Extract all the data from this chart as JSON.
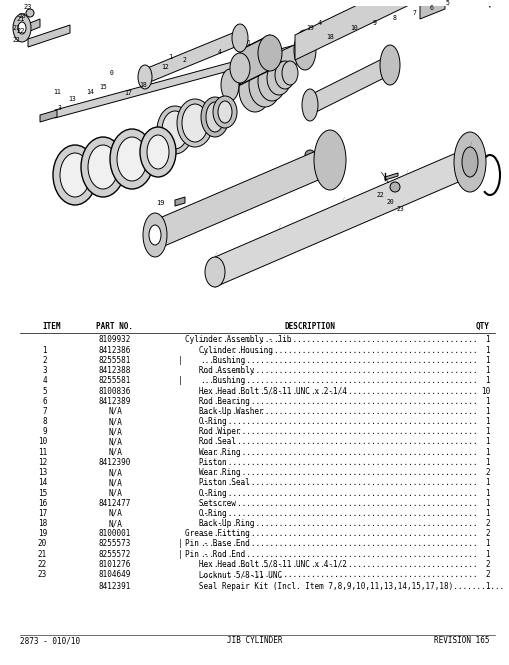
{
  "footer_left": "2873 - 010/10",
  "footer_center": "JIB CYLINDER",
  "footer_right": "REVISION 165",
  "header_item": "ITEM",
  "header_part": "PART NO.",
  "header_desc": "DESCRIPTION",
  "header_qty": "QTY",
  "rows": [
    {
      "item": "",
      "part": "8109932",
      "prefix": "",
      "desc": "Cylinder Assembly - Jib",
      "qty": "1"
    },
    {
      "item": "1",
      "part": "8412386",
      "prefix": "",
      "desc": "   Cylinder Housing",
      "qty": "1"
    },
    {
      "item": "2",
      "part": "8255581",
      "prefix": "|",
      "desc": "      Bushing",
      "qty": "1"
    },
    {
      "item": "3",
      "part": "8412388",
      "prefix": "",
      "desc": "   Rod Assembly",
      "qty": "1"
    },
    {
      "item": "4",
      "part": "8255581",
      "prefix": "|",
      "desc": "      Bushing",
      "qty": "1"
    },
    {
      "item": "5",
      "part": "8100836",
      "prefix": "",
      "desc": "   Hex Head Bolt 5/8-11 UNC x 2-1/4",
      "qty": "10"
    },
    {
      "item": "6",
      "part": "8412389",
      "prefix": "",
      "desc": "   Rod Bearing",
      "qty": "1"
    },
    {
      "item": "7",
      "part": "N/A",
      "prefix": "",
      "desc": "   Back-Up Washer",
      "qty": "1"
    },
    {
      "item": "8",
      "part": "N/A",
      "prefix": "",
      "desc": "   O-Ring",
      "qty": "1"
    },
    {
      "item": "9",
      "part": "N/A",
      "prefix": "",
      "desc": "   Rod Wiper",
      "qty": "1"
    },
    {
      "item": "10",
      "part": "N/A",
      "prefix": "",
      "desc": "   Rod Seal",
      "qty": "1"
    },
    {
      "item": "11",
      "part": "N/A",
      "prefix": "",
      "desc": "   Wear Ring",
      "qty": "1"
    },
    {
      "item": "12",
      "part": "8412390",
      "prefix": "",
      "desc": "   Piston",
      "qty": "1"
    },
    {
      "item": "13",
      "part": "N/A",
      "prefix": "",
      "desc": "   Wear Ring",
      "qty": "2"
    },
    {
      "item": "14",
      "part": "N/A",
      "prefix": "",
      "desc": "   Piston Seal",
      "qty": "1"
    },
    {
      "item": "15",
      "part": "N/A",
      "prefix": "",
      "desc": "   O-Ring",
      "qty": "1"
    },
    {
      "item": "16",
      "part": "8412477",
      "prefix": "",
      "desc": "   Setscrew",
      "qty": "1"
    },
    {
      "item": "17",
      "part": "N/A",
      "prefix": "",
      "desc": "   O-Ring",
      "qty": "1"
    },
    {
      "item": "18",
      "part": "N/A",
      "prefix": "",
      "desc": "   Back-Up Ring",
      "qty": "2"
    },
    {
      "item": "19",
      "part": "8100001",
      "prefix": "",
      "desc": "Grease Fitting",
      "qty": "2"
    },
    {
      "item": "20",
      "part": "8255573",
      "prefix": "|",
      "desc": "Pin - Base End",
      "qty": "1"
    },
    {
      "item": "21",
      "part": "8255572",
      "prefix": "|",
      "desc": "Pin - Rod End",
      "qty": "1"
    },
    {
      "item": "22",
      "part": "8101276",
      "prefix": "",
      "desc": "   Hex Head Bolt 5/8-11 UNC x 4-1/2",
      "qty": "2"
    },
    {
      "item": "23",
      "part": "8104649",
      "prefix": "",
      "desc": "   Locknut 5/8-11 UNC",
      "qty": "2"
    }
  ],
  "kit_part": "8412391",
  "kit_desc": "Seal Repair Kit (Incl. Item 7,8,9,10,11,13,14,15,17,18)",
  "kit_qty": "1",
  "bg_color": "#ffffff",
  "text_color": "#000000"
}
